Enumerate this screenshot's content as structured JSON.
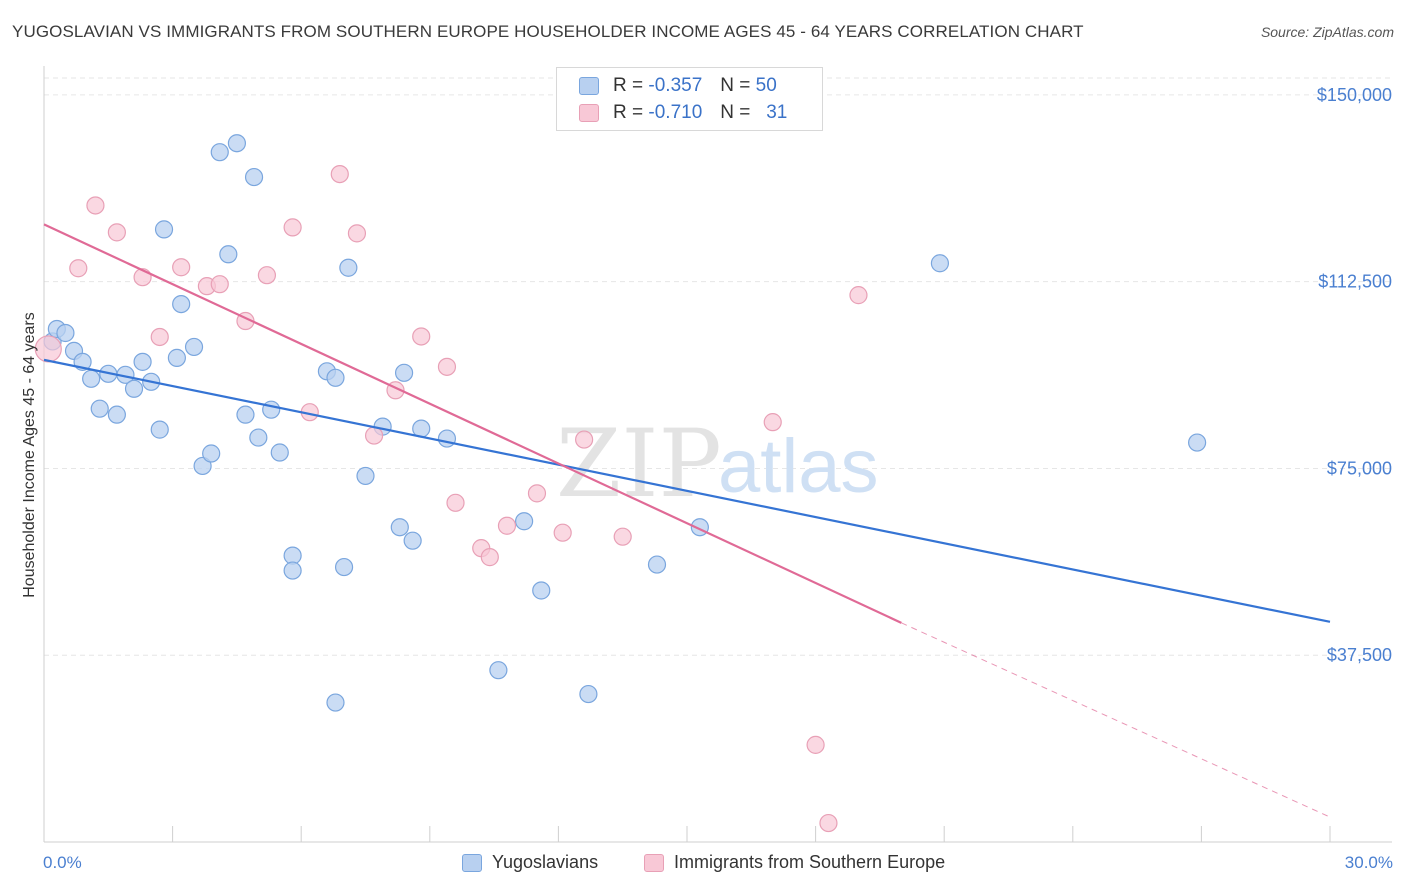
{
  "header": {
    "title": "YUGOSLAVIAN VS IMMIGRANTS FROM SOUTHERN EUROPE HOUSEHOLDER INCOME AGES 45 - 64 YEARS CORRELATION CHART",
    "source": "Source: ZipAtlas.com"
  },
  "watermark": {
    "zip": "ZIP",
    "atlas": "atlas"
  },
  "legend": {
    "r_label": "R =",
    "n_label": "N =",
    "series": [
      {
        "r": "-0.357",
        "n": "50"
      },
      {
        "r": "-0.710",
        "n": "31"
      }
    ]
  },
  "colors": {
    "blue_fill": "#b8d0f0",
    "blue_stroke": "#7aa6de",
    "blue_line": "#3574d4",
    "pink_fill": "#f8c8d6",
    "pink_stroke": "#e8a0b6",
    "pink_line": "#e06a96"
  },
  "chart_data": {
    "type": "scatter",
    "title": "YUGOSLAVIAN VS IMMIGRANTS FROM SOUTHERN EUROPE HOUSEHOLDER INCOME AGES 45 - 64 YEARS CORRELATION CHART",
    "xlabel": "",
    "ylabel": "Householder Income Ages 45 - 64 years",
    "xlim": [
      0,
      30
    ],
    "ylim": [
      0,
      155000
    ],
    "x_tick_labels": [
      "0.0%",
      "30.0%"
    ],
    "y_ticks": [
      37500,
      75000,
      112500,
      150000
    ],
    "y_tick_labels": [
      "$37,500",
      "$75,000",
      "$112,500",
      "$150,000"
    ],
    "grid": true,
    "legend_position": "top-center",
    "series": [
      {
        "name": "Yugoslavians",
        "r": -0.357,
        "n": 50,
        "trend": {
          "x": [
            0,
            30
          ],
          "y": [
            96800,
            44200
          ]
        },
        "points": [
          [
            0.2,
            100500
          ],
          [
            0.3,
            103000
          ],
          [
            0.5,
            102200
          ],
          [
            0.7,
            98600
          ],
          [
            0.9,
            96400
          ],
          [
            1.1,
            93000
          ],
          [
            1.3,
            87000
          ],
          [
            1.5,
            94000
          ],
          [
            1.7,
            85800
          ],
          [
            1.9,
            93800
          ],
          [
            2.1,
            91000
          ],
          [
            2.3,
            96400
          ],
          [
            2.5,
            92400
          ],
          [
            2.7,
            82800
          ],
          [
            2.8,
            123000
          ],
          [
            3.1,
            97200
          ],
          [
            3.2,
            108000
          ],
          [
            3.5,
            99400
          ],
          [
            3.7,
            75500
          ],
          [
            3.9,
            78000
          ],
          [
            4.1,
            138500
          ],
          [
            4.3,
            118000
          ],
          [
            4.5,
            140300
          ],
          [
            4.7,
            85800
          ],
          [
            4.9,
            133500
          ],
          [
            5.0,
            81200
          ],
          [
            5.3,
            86800
          ],
          [
            5.5,
            78200
          ],
          [
            5.8,
            57500
          ],
          [
            5.8,
            54500
          ],
          [
            6.6,
            94500
          ],
          [
            6.8,
            28000
          ],
          [
            6.8,
            93200
          ],
          [
            7.0,
            55200
          ],
          [
            7.1,
            115300
          ],
          [
            7.5,
            73500
          ],
          [
            7.9,
            83400
          ],
          [
            8.3,
            63200
          ],
          [
            8.4,
            94200
          ],
          [
            8.6,
            60500
          ],
          [
            8.8,
            83000
          ],
          [
            9.4,
            81000
          ],
          [
            10.6,
            34500
          ],
          [
            11.2,
            64400
          ],
          [
            11.6,
            50500
          ],
          [
            12.7,
            29700
          ],
          [
            14.3,
            55700
          ],
          [
            15.3,
            63200
          ],
          [
            20.9,
            116200
          ],
          [
            26.9,
            80200
          ]
        ]
      },
      {
        "name": "Immigrants from Southern Europe",
        "r": -0.71,
        "n": 31,
        "trend": {
          "x": [
            0,
            20
          ],
          "y": [
            124000,
            44000
          ]
        },
        "trend_extension": {
          "x": [
            20,
            30
          ],
          "y": [
            44000,
            5000
          ]
        },
        "points": [
          [
            0.1,
            99000
          ],
          [
            0.8,
            115200
          ],
          [
            1.2,
            127800
          ],
          [
            1.7,
            122400
          ],
          [
            2.3,
            113400
          ],
          [
            2.7,
            101400
          ],
          [
            3.2,
            115400
          ],
          [
            3.8,
            111600
          ],
          [
            4.1,
            112000
          ],
          [
            4.7,
            104600
          ],
          [
            5.2,
            113800
          ],
          [
            5.8,
            123400
          ],
          [
            6.2,
            86300
          ],
          [
            6.9,
            134100
          ],
          [
            7.3,
            122200
          ],
          [
            7.7,
            81600
          ],
          [
            8.2,
            90700
          ],
          [
            8.8,
            101500
          ],
          [
            9.4,
            95400
          ],
          [
            9.6,
            68100
          ],
          [
            10.2,
            59000
          ],
          [
            10.4,
            57200
          ],
          [
            10.8,
            63500
          ],
          [
            11.5,
            70000
          ],
          [
            12.1,
            62100
          ],
          [
            12.6,
            80800
          ],
          [
            13.5,
            61300
          ],
          [
            17.0,
            84300
          ],
          [
            18.0,
            19500
          ],
          [
            19.0,
            109800
          ],
          [
            18.3,
            3800
          ]
        ]
      }
    ]
  },
  "bottom_legend": {
    "items": [
      {
        "label": "Yugoslavians"
      },
      {
        "label": "Immigrants from Southern Europe"
      }
    ]
  }
}
